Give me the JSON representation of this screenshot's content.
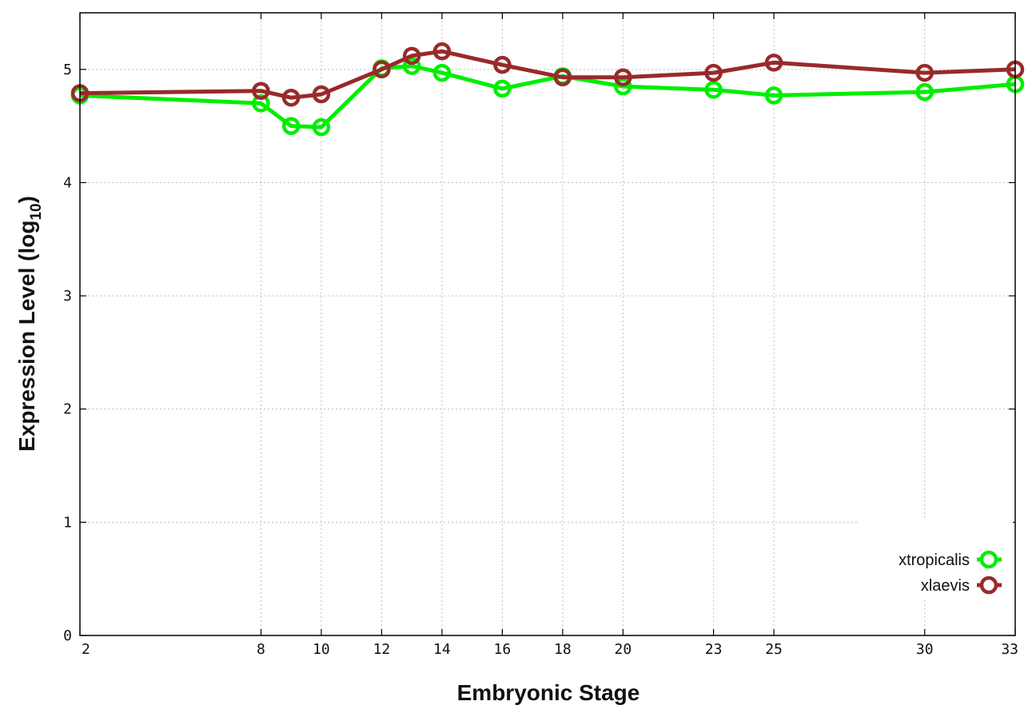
{
  "chart_data": {
    "type": "line",
    "xlabel": "Embryonic Stage",
    "ylabel_main": "Expression Level (log",
    "ylabel_sub": "10",
    "ylabel_close": ")",
    "x": [
      2,
      8,
      9,
      10,
      12,
      13,
      14,
      16,
      18,
      20,
      23,
      25,
      30,
      33
    ],
    "x_ticks": [
      2,
      8,
      10,
      12,
      14,
      16,
      18,
      20,
      23,
      25,
      30,
      33
    ],
    "y_ticks": [
      0,
      1,
      2,
      3,
      4,
      5
    ],
    "ylim": [
      0,
      5.5
    ],
    "grid": true,
    "legend_position": "bottom-right",
    "series": [
      {
        "name": "xtropicalis",
        "color": "#00ee00",
        "values": [
          4.77,
          4.7,
          4.5,
          4.49,
          5.01,
          5.03,
          4.97,
          4.83,
          4.94,
          4.85,
          4.82,
          4.77,
          4.8,
          4.87
        ]
      },
      {
        "name": "xlaevis",
        "color": "#992a2a",
        "values": [
          4.79,
          4.81,
          4.75,
          4.78,
          5.0,
          5.12,
          5.16,
          5.04,
          4.93,
          4.93,
          4.97,
          5.06,
          4.97,
          5.0
        ]
      }
    ]
  }
}
